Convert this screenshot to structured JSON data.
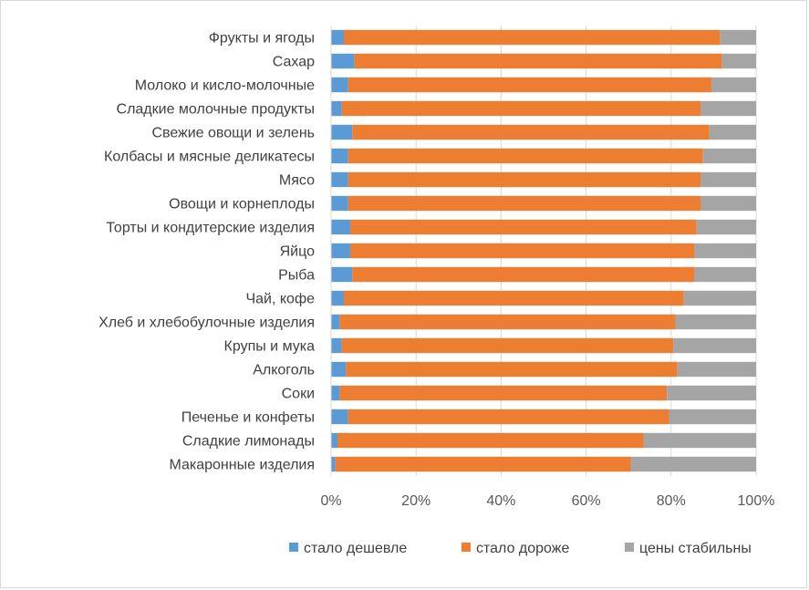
{
  "chart_data": {
    "type": "bar",
    "orientation": "horizontal",
    "stacked": "percent",
    "categories": [
      "Фрукты и ягоды",
      "Сахар",
      "Молоко и кисло-молочные",
      "Сладкие молочные продукты",
      "Свежие овощи и зелень",
      "Колбасы и мясные деликатесы",
      "Мясо",
      "Овощи и корнеплоды",
      "Торты и кондитерские изделия",
      "Яйцо",
      "Рыба",
      "Чай, кофе",
      "Хлеб и хлебобулочные изделия",
      "Крупы и мука",
      "Алкоголь",
      "Соки",
      "Печенье и конфеты",
      "Сладкие лимонады",
      "Макаронные изделия"
    ],
    "series": [
      {
        "name": "стало дешевле",
        "color": "#5b9bd5",
        "values": [
          3,
          5.5,
          4,
          2.5,
          5,
          4,
          4,
          4,
          4.5,
          4.5,
          5,
          3,
          2,
          2.5,
          3.5,
          2,
          4,
          1.5,
          1
        ]
      },
      {
        "name": "стало дороже",
        "color": "#ed7d31",
        "values": [
          88.5,
          86.5,
          85.5,
          84.5,
          84,
          83.5,
          83,
          83,
          81.5,
          81,
          80.5,
          80,
          79,
          78,
          78,
          77,
          75.5,
          72,
          69.5
        ]
      },
      {
        "name": "цены стабильны",
        "color": "#a5a5a5",
        "values": [
          8.5,
          8,
          10.5,
          13,
          11,
          12.5,
          13,
          13,
          14,
          14.5,
          14.5,
          17,
          19,
          19.5,
          18.5,
          21,
          20.5,
          26.5,
          29.5
        ]
      }
    ],
    "xlim": [
      0,
      100
    ],
    "x_ticks": [
      "0%",
      "20%",
      "40%",
      "60%",
      "80%",
      "100%"
    ],
    "title": "",
    "xlabel": "",
    "ylabel": "",
    "grid": "vertical",
    "legend_position": "bottom"
  }
}
